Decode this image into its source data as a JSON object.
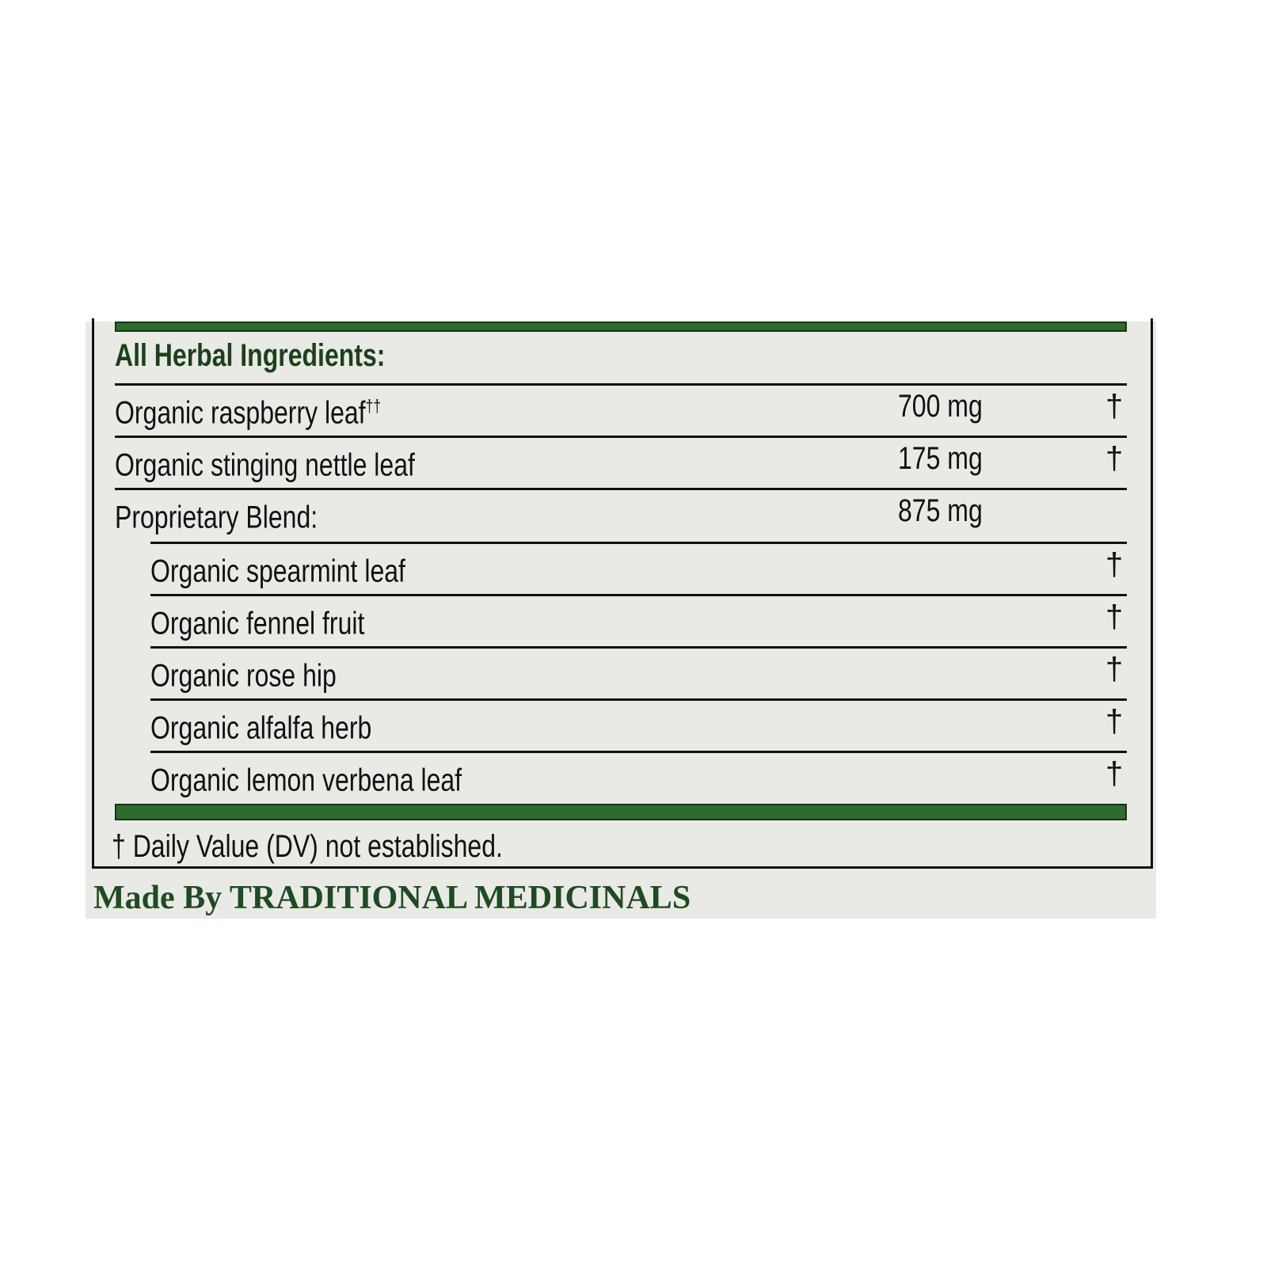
{
  "header": "All Herbal Ingredients:",
  "rows": [
    {
      "name": "Organic raspberry leaf",
      "sup": "††",
      "amount": "700 mg",
      "dv": "†",
      "indent": false
    },
    {
      "name": "Organic stinging nettle leaf",
      "sup": "",
      "amount": "175 mg",
      "dv": "†",
      "indent": false
    },
    {
      "name": "Proprietary Blend:",
      "sup": "",
      "amount": "875 mg",
      "dv": "",
      "indent": false
    },
    {
      "name": "Organic spearmint leaf",
      "sup": "",
      "amount": "",
      "dv": "†",
      "indent": true
    },
    {
      "name": "Organic fennel fruit",
      "sup": "",
      "amount": "",
      "dv": "†",
      "indent": true
    },
    {
      "name": "Organic rose hip",
      "sup": "",
      "amount": "",
      "dv": "†",
      "indent": true
    },
    {
      "name": "Organic alfalfa herb",
      "sup": "",
      "amount": "",
      "dv": "†",
      "indent": true
    },
    {
      "name": "Organic lemon verbena leaf",
      "sup": "",
      "amount": "",
      "dv": "†",
      "indent": true
    }
  ],
  "footnote": {
    "symbol": "†",
    "text": "Daily Value (DV) not established."
  },
  "maker": "Made By TRADITIONAL MEDICINALS",
  "colors": {
    "green": "#2f6b2f",
    "background": "#e9e9e5"
  }
}
